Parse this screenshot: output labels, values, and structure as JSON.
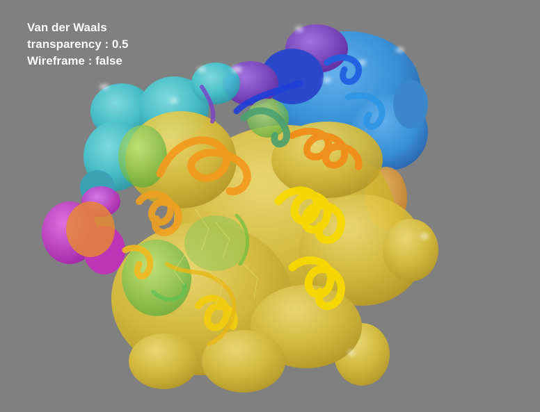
{
  "overlay": {
    "line1": "Van der Waals",
    "line2": "transparency : 0.5",
    "line3": "Wireframe : false"
  },
  "scene": {
    "representation": "Van der Waals surface with cartoon ribbon",
    "transparency": 0.5,
    "wireframe": false,
    "colors": {
      "background": "#808080",
      "text": "#ffffff",
      "cyan": "#3cc8d2",
      "teal": "#2fb4c8",
      "purple": "#7a2fc8",
      "magenta": "#d030d8",
      "blue": "#1e5adc",
      "sky_blue": "#2e96e6",
      "orange": "#f09a1e",
      "yellow": "#e8cc28",
      "bright_yellow": "#f5d800",
      "green": "#78c850"
    }
  }
}
